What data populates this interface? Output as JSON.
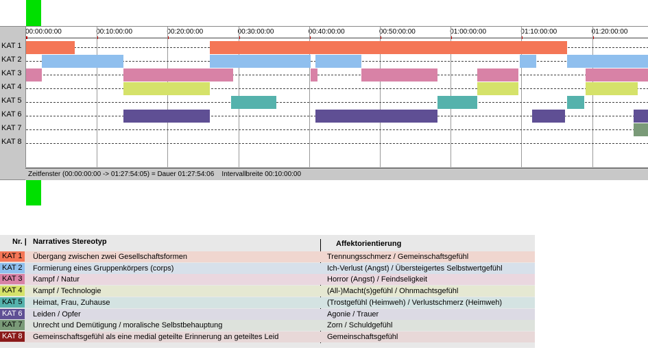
{
  "timeline": {
    "ticks": [
      "00:00:00:00",
      "00:10:00:00",
      "00:20:00:00",
      "00:30:00:00",
      "00:40:00:00",
      "00:50:00:00",
      "01:00:00:00",
      "01:10:00:00",
      "01:20:00:00"
    ],
    "total_minutes": 88,
    "status_text": "Zeitfenster (00:00:00:00 -> 01:27:54:05) = Dauer 01:27:54:06    Intervallbreite 00:10:00:00",
    "cursor_color": "#00e000",
    "rows": [
      {
        "label": "KAT 1",
        "color": "#f47656",
        "segments": [
          [
            0,
            6.9
          ],
          [
            26,
            76.5
          ]
        ]
      },
      {
        "label": "KAT 2",
        "color": "#8fbfee",
        "segments": [
          [
            2.2,
            13.8
          ],
          [
            26,
            40.2
          ],
          [
            40.9,
            47.4
          ],
          [
            69.8,
            72.1
          ],
          [
            76.5,
            88
          ]
        ]
      },
      {
        "label": "KAT 3",
        "color": "#d882a6",
        "segments": [
          [
            0,
            2.2
          ],
          [
            13.8,
            29.3
          ],
          [
            40.2,
            41.2
          ],
          [
            47.4,
            58.1
          ],
          [
            63.8,
            69.6
          ],
          [
            79.1,
            88
          ]
        ]
      },
      {
        "label": "KAT 4",
        "color": "#d5e26a",
        "segments": [
          [
            13.8,
            26
          ],
          [
            63.8,
            69.6
          ],
          [
            79.1,
            86.4
          ]
        ]
      },
      {
        "label": "KAT 5",
        "color": "#55b2ac",
        "segments": [
          [
            29,
            35.4
          ],
          [
            58.1,
            63.8
          ],
          [
            76.5,
            78.9
          ]
        ]
      },
      {
        "label": "KAT 6",
        "color": "#5f4f94",
        "segments": [
          [
            13.8,
            26
          ],
          [
            40.9,
            58.1
          ],
          [
            71.5,
            76.2
          ],
          [
            85.9,
            88
          ]
        ]
      },
      {
        "label": "KAT 7",
        "color": "#7a9a78",
        "segments": [
          [
            85.9,
            88
          ]
        ]
      },
      {
        "label": "KAT 8",
        "color": "#8b1a1a",
        "segments": []
      }
    ]
  },
  "legend": {
    "header_nr": "Nr. |",
    "header_stereotyp": "Narratives Stereotyp",
    "header_affekt": "Affektorientierung",
    "rows": [
      {
        "kat": "KAT 1",
        "swatch": "#f47656",
        "bg": "#f0d6cf",
        "stereotyp": "Übergang zwischen zwei Gesellschaftsformen",
        "affekt": "Trennungsschmerz / Gemeinschaftsgefühl"
      },
      {
        "kat": "KAT 2",
        "swatch": "#8fbfee",
        "bg": "#d7e0ea",
        "stereotyp": "Formierung eines Gruppenkörpers (corps)",
        "affekt": "Ich-Verlust (Angst) / Übersteigertes Selbstwertgefühl"
      },
      {
        "kat": "KAT 3",
        "swatch": "#d882a6",
        "bg": "#ead7df",
        "stereotyp": "Kampf / Natur",
        "affekt": "Horror (Angst) / Feindseligkeit"
      },
      {
        "kat": "KAT 4",
        "swatch": "#d5e26a",
        "bg": "#e5e8d2",
        "stereotyp": "Kampf / Technologie",
        "affekt": "(All-)Macht(s)gefühl / Ohnmachtsgefühl"
      },
      {
        "kat": "KAT 5",
        "swatch": "#55b2ac",
        "bg": "#d4e3e2",
        "stereotyp": "Heimat, Frau, Zuhause",
        "affekt": "(Trostgefühl (Heimweh) / Verlustschmerz (Heimweh)"
      },
      {
        "kat": "KAT 6",
        "swatch": "#5f4f94",
        "bg": "#dcdae4",
        "stereotyp": "Leiden / Opfer",
        "affekt": "Agonie / Trauer"
      },
      {
        "kat": "KAT 7",
        "swatch": "#7a9a78",
        "bg": "#dde2dc",
        "stereotyp": "Unrecht und Demütigung / moralische Selbstbehauptung",
        "affekt": "Zorn / Schuldgefühl"
      },
      {
        "kat": "KAT 8",
        "swatch": "#8b1a1a",
        "bg": "#e8d8d8",
        "stereotyp": "Gemeinschaftsgefühl als eine medial geteilte Erinnerung an geteiltes Leid",
        "affekt": "Gemeinschaftsgefühl"
      }
    ]
  }
}
